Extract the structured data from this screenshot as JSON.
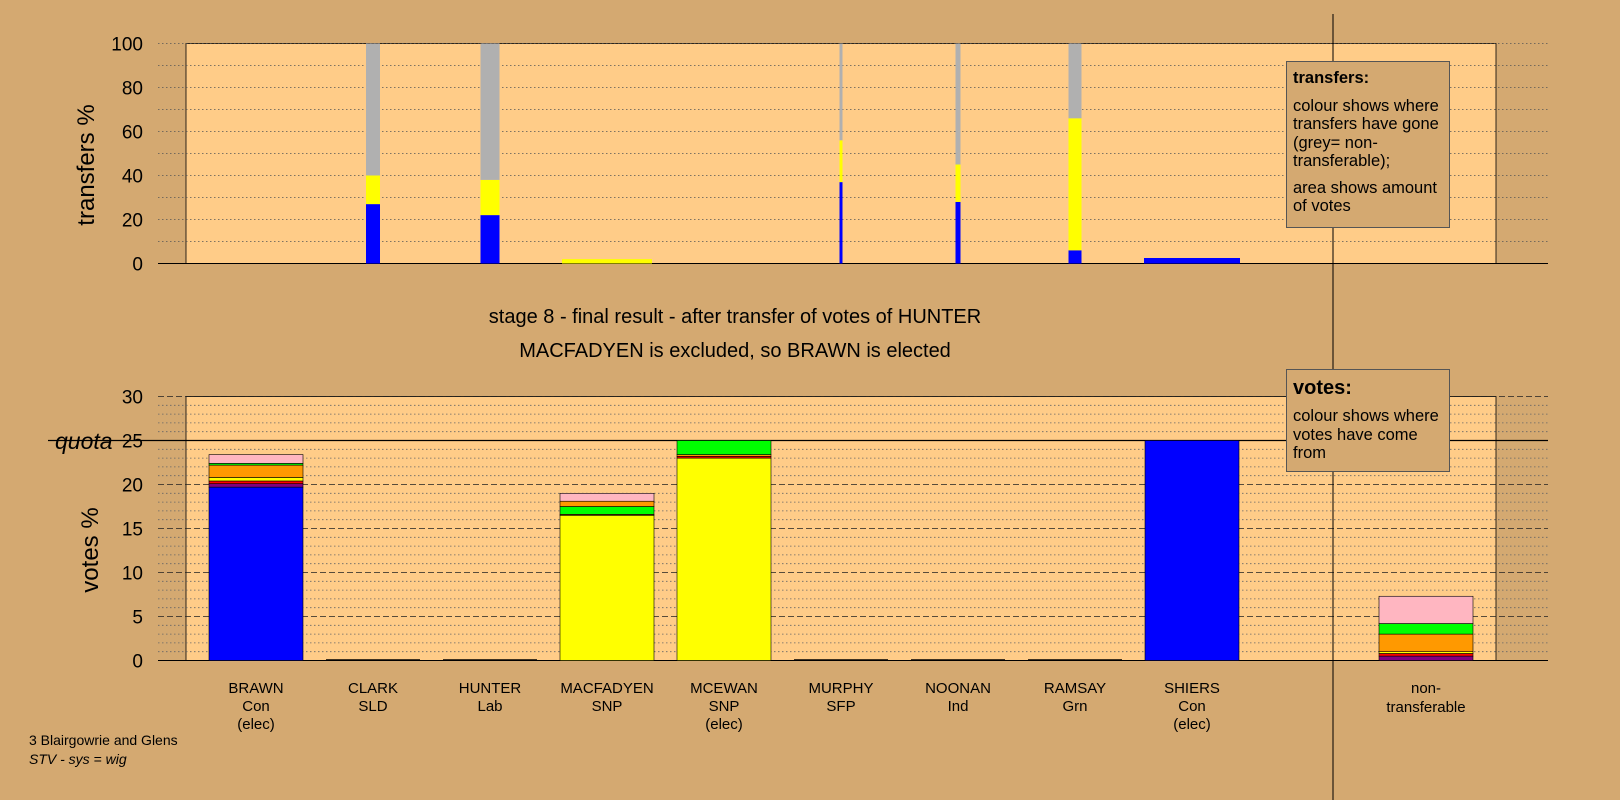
{
  "titles": {
    "line1": "stage 8 - final result - after transfer of votes of HUNTER",
    "line2": "MACFADYEN is excluded, so BRAWN is elected"
  },
  "footer": {
    "ward": "3 Blairgowrie and Glens",
    "system": "STV - sys = wig"
  },
  "legend_transfers": {
    "title": "transfers:",
    "para1": "colour shows where transfers have gone (grey= non-transferable);",
    "para2": "area shows amount of votes"
  },
  "legend_votes": {
    "title": "votes:",
    "para1": "colour shows where votes have come from"
  },
  "colors": {
    "Con": "#0000ff",
    "SNP": "#ffff00",
    "Lab": "#ff0000",
    "SLD": "#ff9900",
    "Grn": "#00ff00",
    "Ind": "#ffb6c1",
    "SFP": "#800080",
    "nontransferable": "#b0b0b0",
    "plot_bg": "#ffcc88",
    "page_bg": "#d4a971"
  },
  "chart_data": [
    {
      "type": "bar",
      "ylabel": "transfers %",
      "ylim": [
        0,
        100
      ],
      "yticks": [
        0,
        20,
        40,
        60,
        80,
        100
      ],
      "bars": [
        {
          "candidate": "CLARK",
          "segments": [
            {
              "party": "Con",
              "value": 27
            },
            {
              "party": "SNP",
              "value": 13
            },
            {
              "party": "nontransferable",
              "value": 60
            }
          ]
        },
        {
          "candidate": "HUNTER",
          "segments": [
            {
              "party": "Con",
              "value": 22
            },
            {
              "party": "SNP",
              "value": 16
            },
            {
              "party": "nontransferable",
              "value": 62
            }
          ]
        },
        {
          "candidate": "MACFADYEN",
          "segments": [
            {
              "party": "SNP",
              "value": 2
            }
          ]
        },
        {
          "candidate": "MURPHY",
          "segments": [
            {
              "party": "Con",
              "value": 37
            },
            {
              "party": "SNP",
              "value": 19
            },
            {
              "party": "nontransferable",
              "value": 44
            }
          ]
        },
        {
          "candidate": "NOONAN",
          "segments": [
            {
              "party": "Con",
              "value": 28
            },
            {
              "party": "SNP",
              "value": 17
            },
            {
              "party": "nontransferable",
              "value": 55
            }
          ]
        },
        {
          "candidate": "RAMSAY",
          "segments": [
            {
              "party": "Con",
              "value": 6
            },
            {
              "party": "SNP",
              "value": 60
            },
            {
              "party": "nontransferable",
              "value": 34
            }
          ]
        },
        {
          "candidate": "SHIERS",
          "segments": [
            {
              "party": "Con",
              "value": 2.5
            }
          ]
        }
      ]
    },
    {
      "type": "bar",
      "ylabel": "votes %",
      "ylim": [
        0,
        30
      ],
      "yticks": [
        0,
        5,
        10,
        15,
        20,
        25,
        30
      ],
      "quota": 25,
      "quota_label": "quota",
      "categories": [
        {
          "name": "BRAWN",
          "party": "Con",
          "status": "(elec)"
        },
        {
          "name": "CLARK",
          "party": "SLD",
          "status": ""
        },
        {
          "name": "HUNTER",
          "party": "Lab",
          "status": ""
        },
        {
          "name": "MACFADYEN",
          "party": "SNP",
          "status": ""
        },
        {
          "name": "MCEWAN",
          "party": "SNP",
          "status": "(elec)"
        },
        {
          "name": "MURPHY",
          "party": "SFP",
          "status": ""
        },
        {
          "name": "NOONAN",
          "party": "Ind",
          "status": ""
        },
        {
          "name": "RAMSAY",
          "party": "Grn",
          "status": ""
        },
        {
          "name": "SHIERS",
          "party": "Con",
          "status": "(elec)"
        }
      ],
      "nontransferable_label_line1": "non-",
      "nontransferable_label_line2": "transferable",
      "bars": [
        {
          "candidate": "BRAWN",
          "segments": [
            {
              "party": "Con",
              "value": 19.7
            },
            {
              "party": "SFP",
              "value": 0.4
            },
            {
              "party": "Lab",
              "value": 0.3
            },
            {
              "party": "SNP",
              "value": 0.4
            },
            {
              "party": "SLD",
              "value": 1.4
            },
            {
              "party": "Grn",
              "value": 0.2
            },
            {
              "party": "Ind",
              "value": 1.0
            }
          ]
        },
        {
          "candidate": "MACFADYEN",
          "segments": [
            {
              "party": "SNP",
              "value": 16.5
            },
            {
              "party": "Lab",
              "value": 0.1
            },
            {
              "party": "Grn",
              "value": 0.9
            },
            {
              "party": "SLD",
              "value": 0.6
            },
            {
              "party": "Ind",
              "value": 0.9
            }
          ]
        },
        {
          "candidate": "MCEWAN",
          "segments": [
            {
              "party": "SNP",
              "value": 23.0
            },
            {
              "party": "Lab",
              "value": 0.2
            },
            {
              "party": "SLD",
              "value": 0.2
            },
            {
              "party": "Grn",
              "value": 1.6
            }
          ]
        },
        {
          "candidate": "SHIERS",
          "segments": [
            {
              "party": "Con",
              "value": 25.0
            }
          ]
        },
        {
          "candidate": "non-transferable",
          "segments": [
            {
              "party": "SFP",
              "value": 0.5
            },
            {
              "party": "Lab",
              "value": 0.3
            },
            {
              "party": "SNP",
              "value": 0.2
            },
            {
              "party": "SLD",
              "value": 2.0
            },
            {
              "party": "Grn",
              "value": 1.2
            },
            {
              "party": "Ind",
              "value": 3.1
            }
          ]
        }
      ]
    }
  ]
}
